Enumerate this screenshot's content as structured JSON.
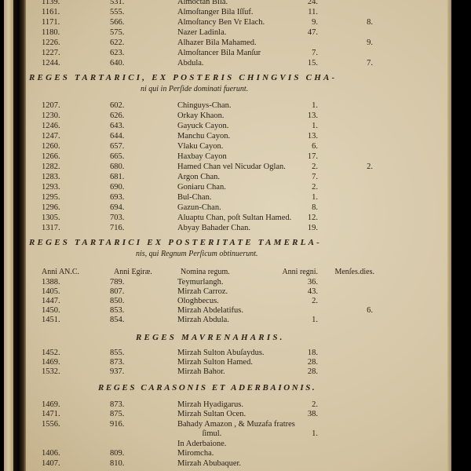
{
  "section1": {
    "rows": [
      [
        "1139.",
        "531.",
        "Almoctan Bila.",
        "24.",
        ""
      ],
      [
        "1161.",
        "555.",
        "Almoſtanger Bila Iſſuf.",
        "11.",
        ""
      ],
      [
        "1171.",
        "566.",
        "Almoſtancy Ben Vr Elach.",
        "9.",
        "8."
      ],
      [
        "1180.",
        "575.",
        "Nazer Ladinla.",
        "47.",
        ""
      ],
      [
        "1226.",
        "622.",
        "Alhazer Bila Mahamed.",
        "",
        "9."
      ],
      [
        "1227.",
        "623.",
        "Almoſtancer Bila Manſur",
        "7.",
        ""
      ],
      [
        "1244.",
        "640.",
        "Abdula.",
        "15.",
        "7."
      ]
    ]
  },
  "section2": {
    "heading": "REGES TARTARICI, EX POSTERIS CHINGVIS CHA-",
    "subheading": "ni qui in Perſide dominati fuerunt.",
    "rows": [
      [
        "1207.",
        "602.",
        "Chinguys-Chan.",
        "1.",
        ""
      ],
      [
        "1230.",
        "626.",
        "Orkay Khaon.",
        "13.",
        ""
      ],
      [
        "1246.",
        "643.",
        "Gayuck Cayon.",
        "1.",
        ""
      ],
      [
        "1247.",
        "644.",
        "Manchu Cayon.",
        "13.",
        ""
      ],
      [
        "1260.",
        "657.",
        "Vlaku Cayon.",
        "6.",
        ""
      ],
      [
        "1266.",
        "665.",
        "Haxbay Cayon",
        "17.",
        ""
      ],
      [
        "1282.",
        "680.",
        "Hamed Chan vel Nicudar Oglan.",
        "2.",
        "2."
      ],
      [
        "1283.",
        "681.",
        "Argon Chan.",
        "7.",
        ""
      ],
      [
        "1293.",
        "690.",
        "Goniaru Chan.",
        "2.",
        ""
      ],
      [
        "1295.",
        "693.",
        "Bul-Chan.",
        "1.",
        ""
      ],
      [
        "1296.",
        "694.",
        "Gazun-Chan.",
        "8.",
        ""
      ],
      [
        "1305.",
        "703.",
        "Aluaptu Chan, poſt Sultan Hamed.",
        "12.",
        ""
      ],
      [
        "1317.",
        "716.",
        "Abyay Bahader Chan.",
        "19.",
        ""
      ]
    ]
  },
  "section3": {
    "heading": "REGES TARTARICI EX POSTERITATE TAMERLA-",
    "subheading": "nis, qui Regnum Perſicum obtinuerunt.",
    "columns": [
      "Anni AN.C.",
      "Anni Egiræ.",
      "Nomina regum.",
      "Anni regni.",
      "Menſes.dies."
    ],
    "rows": [
      [
        "1388.",
        "789.",
        "Teymurlangh.",
        "36.",
        ""
      ],
      [
        "1405.",
        "807.",
        "Mirzah Carroz.",
        "43.",
        ""
      ],
      [
        "1447.",
        "850.",
        "Ologhbecus.",
        "2.",
        ""
      ],
      [
        "1450.",
        "853.",
        "Mirzah Abdelatifus.",
        "",
        "6."
      ],
      [
        "1451.",
        "854.",
        "Mirzah Abdula.",
        "1.",
        ""
      ]
    ]
  },
  "section4": {
    "heading": "REGES MAVRENAHARIS.",
    "rows": [
      [
        "1452.",
        "855.",
        "Mirzah Sulton Abuſaydus.",
        "18.",
        ""
      ],
      [
        "1469.",
        "873.",
        "Mirzah Sulton Hamed.",
        "28.",
        ""
      ],
      [
        "1532.",
        "937.",
        "Mirzah Bahor.",
        "28.",
        ""
      ]
    ]
  },
  "section5": {
    "heading": "REGES CARASONIS ET ADERBAIONIS.",
    "rows": [
      [
        "1469.",
        "873.",
        "Mirzah Hyadigarus.",
        "2.",
        ""
      ],
      [
        "1471.",
        "875.",
        "Mirzah Sultan Ocen.",
        "38.",
        ""
      ],
      [
        "1556.",
        "916.",
        "Bahady Amazon , & Muzafa fratres",
        "",
        ""
      ],
      [
        "",
        "",
        "            ſimul.",
        "1.",
        ""
      ],
      [
        "",
        "",
        "In Aderbaione.",
        "",
        ""
      ],
      [
        "1406.",
        "809.",
        "Miromcha.",
        "",
        ""
      ],
      [
        "1407.",
        "810.",
        "Mirzah Abubaquer.",
        "",
        ""
      ]
    ]
  }
}
